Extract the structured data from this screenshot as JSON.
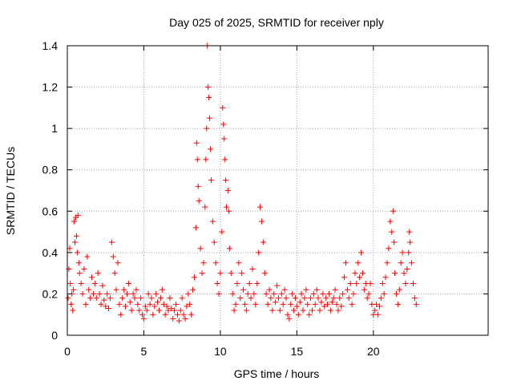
{
  "chart_data": {
    "type": "scatter",
    "title": "Day 025 of 2025, SRMTID for receiver nply",
    "xlabel": "GPS time / hours",
    "ylabel": "SRMTID / TECUs",
    "xlim": [
      0,
      27.5
    ],
    "ylim": [
      0,
      1.4
    ],
    "x_ticks": [
      0,
      5,
      10,
      15,
      20
    ],
    "x_tick_labels": [
      "0",
      "5",
      "10",
      "15",
      "20"
    ],
    "y_ticks": [
      0,
      0.2,
      0.4,
      0.6,
      0.8,
      1.0,
      1.2,
      1.4
    ],
    "y_tick_labels": [
      "0",
      "0.2",
      "0.4",
      "0.6",
      "0.8",
      "1",
      "1.2",
      "1.4"
    ],
    "grid": true,
    "marker": "plus",
    "marker_color": "#ff0000",
    "series": [
      {
        "name": "SRMTID",
        "points": [
          [
            0.05,
            0.18
          ],
          [
            0.1,
            0.32
          ],
          [
            0.15,
            0.42
          ],
          [
            0.2,
            0.25
          ],
          [
            0.25,
            0.15
          ],
          [
            0.3,
            0.2
          ],
          [
            0.35,
            0.12
          ],
          [
            0.4,
            0.22
          ],
          [
            0.45,
            0.55
          ],
          [
            0.5,
            0.45
          ],
          [
            0.55,
            0.57
          ],
          [
            0.6,
            0.48
          ],
          [
            0.65,
            0.4
          ],
          [
            0.7,
            0.58
          ],
          [
            0.75,
            0.35
          ],
          [
            0.8,
            0.3
          ],
          [
            0.9,
            0.25
          ],
          [
            1.0,
            0.2
          ],
          [
            1.1,
            0.32
          ],
          [
            1.2,
            0.15
          ],
          [
            1.3,
            0.38
          ],
          [
            1.4,
            0.22
          ],
          [
            1.5,
            0.18
          ],
          [
            1.6,
            0.28
          ],
          [
            1.7,
            0.2
          ],
          [
            1.8,
            0.25
          ],
          [
            1.9,
            0.18
          ],
          [
            2.0,
            0.3
          ],
          [
            2.1,
            0.2
          ],
          [
            2.2,
            0.15
          ],
          [
            2.3,
            0.24
          ],
          [
            2.4,
            0.17
          ],
          [
            2.5,
            0.14
          ],
          [
            2.6,
            0.2
          ],
          [
            2.7,
            0.13
          ],
          [
            2.8,
            0.18
          ],
          [
            2.9,
            0.45
          ],
          [
            3.0,
            0.38
          ],
          [
            3.1,
            0.3
          ],
          [
            3.2,
            0.22
          ],
          [
            3.3,
            0.35
          ],
          [
            3.4,
            0.15
          ],
          [
            3.5,
            0.1
          ],
          [
            3.6,
            0.18
          ],
          [
            3.7,
            0.22
          ],
          [
            3.8,
            0.14
          ],
          [
            3.9,
            0.2
          ],
          [
            4.0,
            0.25
          ],
          [
            4.1,
            0.16
          ],
          [
            4.2,
            0.12
          ],
          [
            4.3,
            0.2
          ],
          [
            4.4,
            0.18
          ],
          [
            4.5,
            0.22
          ],
          [
            4.6,
            0.15
          ],
          [
            4.7,
            0.12
          ],
          [
            4.8,
            0.18
          ],
          [
            4.9,
            0.1
          ],
          [
            5.0,
            0.08
          ],
          [
            5.1,
            0.14
          ],
          [
            5.2,
            0.12
          ],
          [
            5.3,
            0.2
          ],
          [
            5.4,
            0.15
          ],
          [
            5.5,
            0.18
          ],
          [
            5.6,
            0.1
          ],
          [
            5.7,
            0.14
          ],
          [
            5.8,
            0.2
          ],
          [
            5.9,
            0.16
          ],
          [
            6.0,
            0.12
          ],
          [
            6.1,
            0.18
          ],
          [
            6.2,
            0.22
          ],
          [
            6.3,
            0.15
          ],
          [
            6.4,
            0.1
          ],
          [
            6.5,
            0.14
          ],
          [
            6.6,
            0.12
          ],
          [
            6.7,
            0.18
          ],
          [
            6.8,
            0.13
          ],
          [
            6.9,
            0.08
          ],
          [
            7.0,
            0.12
          ],
          [
            7.1,
            0.15
          ],
          [
            7.2,
            0.1
          ],
          [
            7.3,
            0.07
          ],
          [
            7.4,
            0.12
          ],
          [
            7.5,
            0.18
          ],
          [
            7.6,
            0.1
          ],
          [
            7.7,
            0.08
          ],
          [
            7.8,
            0.14
          ],
          [
            7.9,
            0.2
          ],
          [
            8.0,
            0.15
          ],
          [
            8.1,
            0.1
          ],
          [
            8.2,
            0.22
          ],
          [
            8.3,
            0.28
          ],
          [
            8.4,
            0.52
          ],
          [
            8.45,
            0.93
          ],
          [
            8.5,
            0.85
          ],
          [
            8.55,
            0.72
          ],
          [
            8.6,
            0.65
          ],
          [
            8.7,
            0.42
          ],
          [
            8.8,
            0.3
          ],
          [
            8.9,
            0.35
          ],
          [
            9.0,
            0.62
          ],
          [
            9.05,
            0.85
          ],
          [
            9.1,
            1.0
          ],
          [
            9.15,
            1.4
          ],
          [
            9.2,
            1.2
          ],
          [
            9.25,
            1.15
          ],
          [
            9.3,
            1.05
          ],
          [
            9.35,
            0.9
          ],
          [
            9.4,
            0.75
          ],
          [
            9.5,
            0.55
          ],
          [
            9.6,
            0.45
          ],
          [
            9.7,
            0.35
          ],
          [
            9.8,
            0.25
          ],
          [
            9.9,
            0.2
          ],
          [
            10.0,
            0.3
          ],
          [
            10.1,
            0.5
          ],
          [
            10.15,
            1.1
          ],
          [
            10.2,
            1.02
          ],
          [
            10.25,
            0.95
          ],
          [
            10.3,
            0.85
          ],
          [
            10.35,
            0.75
          ],
          [
            10.4,
            0.62
          ],
          [
            10.5,
            0.7
          ],
          [
            10.55,
            0.6
          ],
          [
            10.6,
            0.42
          ],
          [
            10.7,
            0.3
          ],
          [
            10.8,
            0.2
          ],
          [
            10.9,
            0.12
          ],
          [
            11.0,
            0.15
          ],
          [
            11.1,
            0.25
          ],
          [
            11.2,
            0.35
          ],
          [
            11.3,
            0.18
          ],
          [
            11.4,
            0.3
          ],
          [
            11.5,
            0.22
          ],
          [
            11.6,
            0.15
          ],
          [
            11.7,
            0.12
          ],
          [
            11.8,
            0.2
          ],
          [
            11.9,
            0.25
          ],
          [
            12.0,
            0.18
          ],
          [
            12.1,
            0.32
          ],
          [
            12.2,
            0.2
          ],
          [
            12.3,
            0.15
          ],
          [
            12.4,
            0.25
          ],
          [
            12.5,
            0.4
          ],
          [
            12.6,
            0.62
          ],
          [
            12.7,
            0.55
          ],
          [
            12.8,
            0.45
          ],
          [
            12.9,
            0.3
          ],
          [
            13.0,
            0.2
          ],
          [
            13.1,
            0.15
          ],
          [
            13.2,
            0.22
          ],
          [
            13.3,
            0.18
          ],
          [
            13.4,
            0.12
          ],
          [
            13.5,
            0.2
          ],
          [
            13.6,
            0.16
          ],
          [
            13.7,
            0.24
          ],
          [
            13.8,
            0.18
          ],
          [
            13.9,
            0.12
          ],
          [
            14.0,
            0.2
          ],
          [
            14.1,
            0.15
          ],
          [
            14.2,
            0.22
          ],
          [
            14.3,
            0.18
          ],
          [
            14.4,
            0.1
          ],
          [
            14.5,
            0.08
          ],
          [
            14.6,
            0.15
          ],
          [
            14.7,
            0.2
          ],
          [
            14.8,
            0.12
          ],
          [
            14.9,
            0.18
          ],
          [
            15.0,
            0.14
          ],
          [
            15.1,
            0.1
          ],
          [
            15.2,
            0.16
          ],
          [
            15.3,
            0.2
          ],
          [
            15.4,
            0.12
          ],
          [
            15.5,
            0.18
          ],
          [
            15.6,
            0.22
          ],
          [
            15.7,
            0.15
          ],
          [
            15.8,
            0.1
          ],
          [
            15.9,
            0.18
          ],
          [
            16.0,
            0.12
          ],
          [
            16.1,
            0.2
          ],
          [
            16.2,
            0.15
          ],
          [
            16.3,
            0.22
          ],
          [
            16.4,
            0.18
          ],
          [
            16.5,
            0.12
          ],
          [
            16.6,
            0.16
          ],
          [
            16.7,
            0.2
          ],
          [
            16.8,
            0.14
          ],
          [
            16.9,
            0.18
          ],
          [
            17.0,
            0.15
          ],
          [
            17.1,
            0.2
          ],
          [
            17.2,
            0.12
          ],
          [
            17.3,
            0.16
          ],
          [
            17.4,
            0.18
          ],
          [
            17.5,
            0.22
          ],
          [
            17.6,
            0.15
          ],
          [
            17.7,
            0.12
          ],
          [
            17.8,
            0.18
          ],
          [
            17.9,
            0.14
          ],
          [
            18.0,
            0.2
          ],
          [
            18.1,
            0.28
          ],
          [
            18.2,
            0.35
          ],
          [
            18.3,
            0.22
          ],
          [
            18.4,
            0.18
          ],
          [
            18.5,
            0.25
          ],
          [
            18.6,
            0.15
          ],
          [
            18.7,
            0.2
          ],
          [
            18.8,
            0.3
          ],
          [
            18.9,
            0.25
          ],
          [
            19.0,
            0.35
          ],
          [
            19.1,
            0.28
          ],
          [
            19.2,
            0.4
          ],
          [
            19.3,
            0.3
          ],
          [
            19.4,
            0.22
          ],
          [
            19.5,
            0.25
          ],
          [
            19.6,
            0.18
          ],
          [
            19.7,
            0.2
          ],
          [
            19.8,
            0.25
          ],
          [
            19.9,
            0.15
          ],
          [
            20.0,
            0.1
          ],
          [
            20.1,
            0.12
          ],
          [
            20.2,
            0.15
          ],
          [
            20.3,
            0.1
          ],
          [
            20.4,
            0.14
          ],
          [
            20.5,
            0.18
          ],
          [
            20.6,
            0.25
          ],
          [
            20.7,
            0.2
          ],
          [
            20.8,
            0.28
          ],
          [
            20.9,
            0.35
          ],
          [
            21.0,
            0.42
          ],
          [
            21.1,
            0.55
          ],
          [
            21.2,
            0.5
          ],
          [
            21.3,
            0.6
          ],
          [
            21.35,
            0.45
          ],
          [
            21.4,
            0.3
          ],
          [
            21.5,
            0.2
          ],
          [
            21.6,
            0.15
          ],
          [
            21.7,
            0.22
          ],
          [
            21.8,
            0.35
          ],
          [
            21.9,
            0.4
          ],
          [
            22.0,
            0.3
          ],
          [
            22.1,
            0.25
          ],
          [
            22.2,
            0.32
          ],
          [
            22.3,
            0.4
          ],
          [
            22.35,
            0.5
          ],
          [
            22.4,
            0.45
          ],
          [
            22.5,
            0.35
          ],
          [
            22.6,
            0.25
          ],
          [
            22.7,
            0.18
          ],
          [
            22.8,
            0.15
          ]
        ]
      }
    ]
  }
}
